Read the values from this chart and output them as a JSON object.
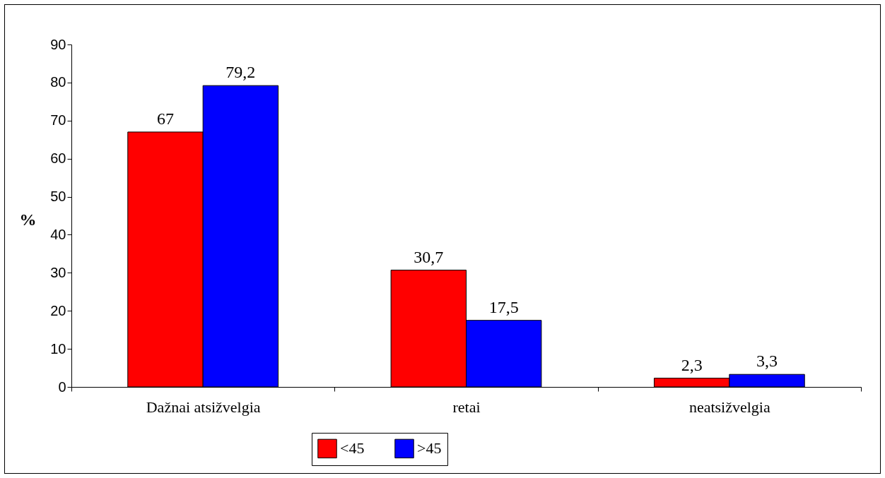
{
  "chart_data": {
    "type": "bar",
    "ylabel": "%",
    "categories": [
      "Dažnai atsižvelgia",
      "retai",
      "neatsižvelgia"
    ],
    "series": [
      {
        "name": "<45",
        "color": "#ff0000",
        "values": [
          67,
          30.7,
          2.3
        ],
        "value_labels": [
          "67",
          "30,7",
          "2,3"
        ]
      },
      {
        "name": ">45",
        "color": "#0000ff",
        "values": [
          79.2,
          17.5,
          3.3
        ],
        "value_labels": [
          "79,2",
          "17,5",
          "3,3"
        ]
      }
    ],
    "ylim": [
      0,
      90
    ],
    "yticks": [
      0,
      10,
      20,
      30,
      40,
      50,
      60,
      70,
      80,
      90
    ],
    "grid": false,
    "legend": "bottom"
  }
}
